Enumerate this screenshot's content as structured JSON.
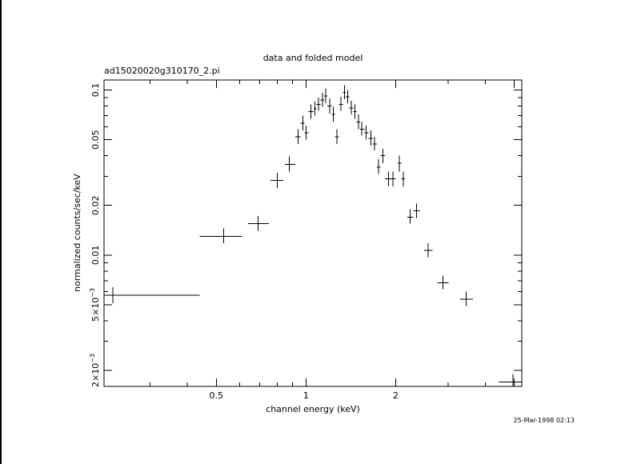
{
  "chart_data": {
    "type": "scatter",
    "title": "data and folded model",
    "subtitle": "ad15020020g310170_2.pi",
    "xlabel": "channel energy (keV)",
    "ylabel": "normalized counts/sec/keV",
    "timestamp": "25-Mar-1998 02:13",
    "x_scale": "log",
    "y_scale": "log",
    "xlim": [
      0.21,
      5.3
    ],
    "ylim": [
      0.0016,
      0.115
    ],
    "x_ticks": [
      {
        "value": 0.5,
        "label": "0.5"
      },
      {
        "value": 1,
        "label": "1"
      },
      {
        "value": 2,
        "label": "2"
      }
    ],
    "y_ticks": [
      {
        "value": 0.1,
        "label": "0.1"
      },
      {
        "value": 0.05,
        "label": "0.05"
      },
      {
        "value": 0.02,
        "label": "0.02"
      },
      {
        "value": 0.01,
        "label": "0.01"
      },
      {
        "value": 0.005,
        "label": "5×10",
        "exp": "−3"
      },
      {
        "value": 0.002,
        "label": "2×10",
        "exp": "−3"
      }
    ],
    "series": [
      {
        "points": [
          {
            "x": 0.225,
            "xlo": 0.21,
            "xhi": 0.44,
            "y": 0.0057,
            "ylo": 0.0051,
            "yhi": 0.0064
          },
          {
            "x": 0.53,
            "xlo": 0.44,
            "xhi": 0.61,
            "y": 0.013,
            "ylo": 0.0118,
            "yhi": 0.0145
          },
          {
            "x": 0.69,
            "xlo": 0.64,
            "xhi": 0.75,
            "y": 0.0155,
            "ylo": 0.014,
            "yhi": 0.0172
          },
          {
            "x": 0.8,
            "xlo": 0.76,
            "xhi": 0.84,
            "y": 0.0283,
            "ylo": 0.0255,
            "yhi": 0.0315
          },
          {
            "x": 0.88,
            "xlo": 0.85,
            "xhi": 0.92,
            "y": 0.0355,
            "ylo": 0.032,
            "yhi": 0.0395
          },
          {
            "x": 0.94,
            "xlo": 0.92,
            "xhi": 0.96,
            "y": 0.052,
            "ylo": 0.047,
            "yhi": 0.058
          },
          {
            "x": 0.975,
            "xlo": 0.96,
            "xhi": 0.99,
            "y": 0.063,
            "ylo": 0.057,
            "yhi": 0.07
          },
          {
            "x": 1.0,
            "xlo": 0.99,
            "xhi": 1.02,
            "y": 0.055,
            "ylo": 0.05,
            "yhi": 0.061
          },
          {
            "x": 1.04,
            "xlo": 1.02,
            "xhi": 1.06,
            "y": 0.074,
            "ylo": 0.067,
            "yhi": 0.082
          },
          {
            "x": 1.07,
            "xlo": 1.06,
            "xhi": 1.085,
            "y": 0.077,
            "ylo": 0.07,
            "yhi": 0.085
          },
          {
            "x": 1.1,
            "xlo": 1.085,
            "xhi": 1.12,
            "y": 0.082,
            "ylo": 0.075,
            "yhi": 0.09
          },
          {
            "x": 1.135,
            "xlo": 1.12,
            "xhi": 1.15,
            "y": 0.087,
            "ylo": 0.079,
            "yhi": 0.096
          },
          {
            "x": 1.165,
            "xlo": 1.15,
            "xhi": 1.18,
            "y": 0.092,
            "ylo": 0.083,
            "yhi": 0.102
          },
          {
            "x": 1.2,
            "xlo": 1.18,
            "xhi": 1.22,
            "y": 0.08,
            "ylo": 0.072,
            "yhi": 0.089
          },
          {
            "x": 1.235,
            "xlo": 1.22,
            "xhi": 1.25,
            "y": 0.071,
            "ylo": 0.064,
            "yhi": 0.079
          },
          {
            "x": 1.27,
            "xlo": 1.25,
            "xhi": 1.29,
            "y": 0.052,
            "ylo": 0.047,
            "yhi": 0.058
          },
          {
            "x": 1.31,
            "xlo": 1.29,
            "xhi": 1.33,
            "y": 0.082,
            "ylo": 0.075,
            "yhi": 0.091
          },
          {
            "x": 1.345,
            "xlo": 1.33,
            "xhi": 1.36,
            "y": 0.097,
            "ylo": 0.088,
            "yhi": 0.107
          },
          {
            "x": 1.38,
            "xlo": 1.36,
            "xhi": 1.4,
            "y": 0.091,
            "ylo": 0.083,
            "yhi": 0.1
          },
          {
            "x": 1.42,
            "xlo": 1.4,
            "xhi": 1.44,
            "y": 0.078,
            "ylo": 0.071,
            "yhi": 0.086
          },
          {
            "x": 1.46,
            "xlo": 1.44,
            "xhi": 1.48,
            "y": 0.074,
            "ylo": 0.067,
            "yhi": 0.082
          },
          {
            "x": 1.5,
            "xlo": 1.48,
            "xhi": 1.52,
            "y": 0.064,
            "ylo": 0.058,
            "yhi": 0.071
          },
          {
            "x": 1.54,
            "xlo": 1.52,
            "xhi": 1.57,
            "y": 0.058,
            "ylo": 0.053,
            "yhi": 0.064
          },
          {
            "x": 1.59,
            "xlo": 1.57,
            "xhi": 1.62,
            "y": 0.055,
            "ylo": 0.05,
            "yhi": 0.061
          },
          {
            "x": 1.65,
            "xlo": 1.62,
            "xhi": 1.68,
            "y": 0.051,
            "ylo": 0.046,
            "yhi": 0.057
          },
          {
            "x": 1.7,
            "xlo": 1.68,
            "xhi": 1.73,
            "y": 0.047,
            "ylo": 0.043,
            "yhi": 0.052
          },
          {
            "x": 1.75,
            "xlo": 1.73,
            "xhi": 1.78,
            "y": 0.034,
            "ylo": 0.031,
            "yhi": 0.038
          },
          {
            "x": 1.81,
            "xlo": 1.78,
            "xhi": 1.84,
            "y": 0.04,
            "ylo": 0.036,
            "yhi": 0.044
          },
          {
            "x": 1.89,
            "xlo": 1.84,
            "xhi": 1.95,
            "y": 0.029,
            "ylo": 0.026,
            "yhi": 0.032
          },
          {
            "x": 1.96,
            "xlo": 1.92,
            "xhi": 2.0,
            "y": 0.029,
            "ylo": 0.026,
            "yhi": 0.032
          },
          {
            "x": 2.06,
            "xlo": 2.03,
            "xhi": 2.09,
            "y": 0.036,
            "ylo": 0.032,
            "yhi": 0.04
          },
          {
            "x": 2.12,
            "xlo": 2.09,
            "xhi": 2.15,
            "y": 0.029,
            "ylo": 0.026,
            "yhi": 0.032
          },
          {
            "x": 2.24,
            "xlo": 2.19,
            "xhi": 2.29,
            "y": 0.017,
            "ylo": 0.0155,
            "yhi": 0.019
          },
          {
            "x": 2.35,
            "xlo": 2.29,
            "xhi": 2.41,
            "y": 0.0185,
            "ylo": 0.0168,
            "yhi": 0.0205
          },
          {
            "x": 2.57,
            "xlo": 2.49,
            "xhi": 2.66,
            "y": 0.0107,
            "ylo": 0.0097,
            "yhi": 0.0118
          },
          {
            "x": 2.88,
            "xlo": 2.76,
            "xhi": 3.01,
            "y": 0.0068,
            "ylo": 0.0062,
            "yhi": 0.0075
          },
          {
            "x": 3.45,
            "xlo": 3.28,
            "xhi": 3.63,
            "y": 0.0054,
            "ylo": 0.0049,
            "yhi": 0.006
          },
          {
            "x": 4.95,
            "xlo": 4.45,
            "xhi": 5.3,
            "y": 0.0017,
            "ylo": 0.00155,
            "yhi": 0.0019
          }
        ]
      }
    ]
  }
}
